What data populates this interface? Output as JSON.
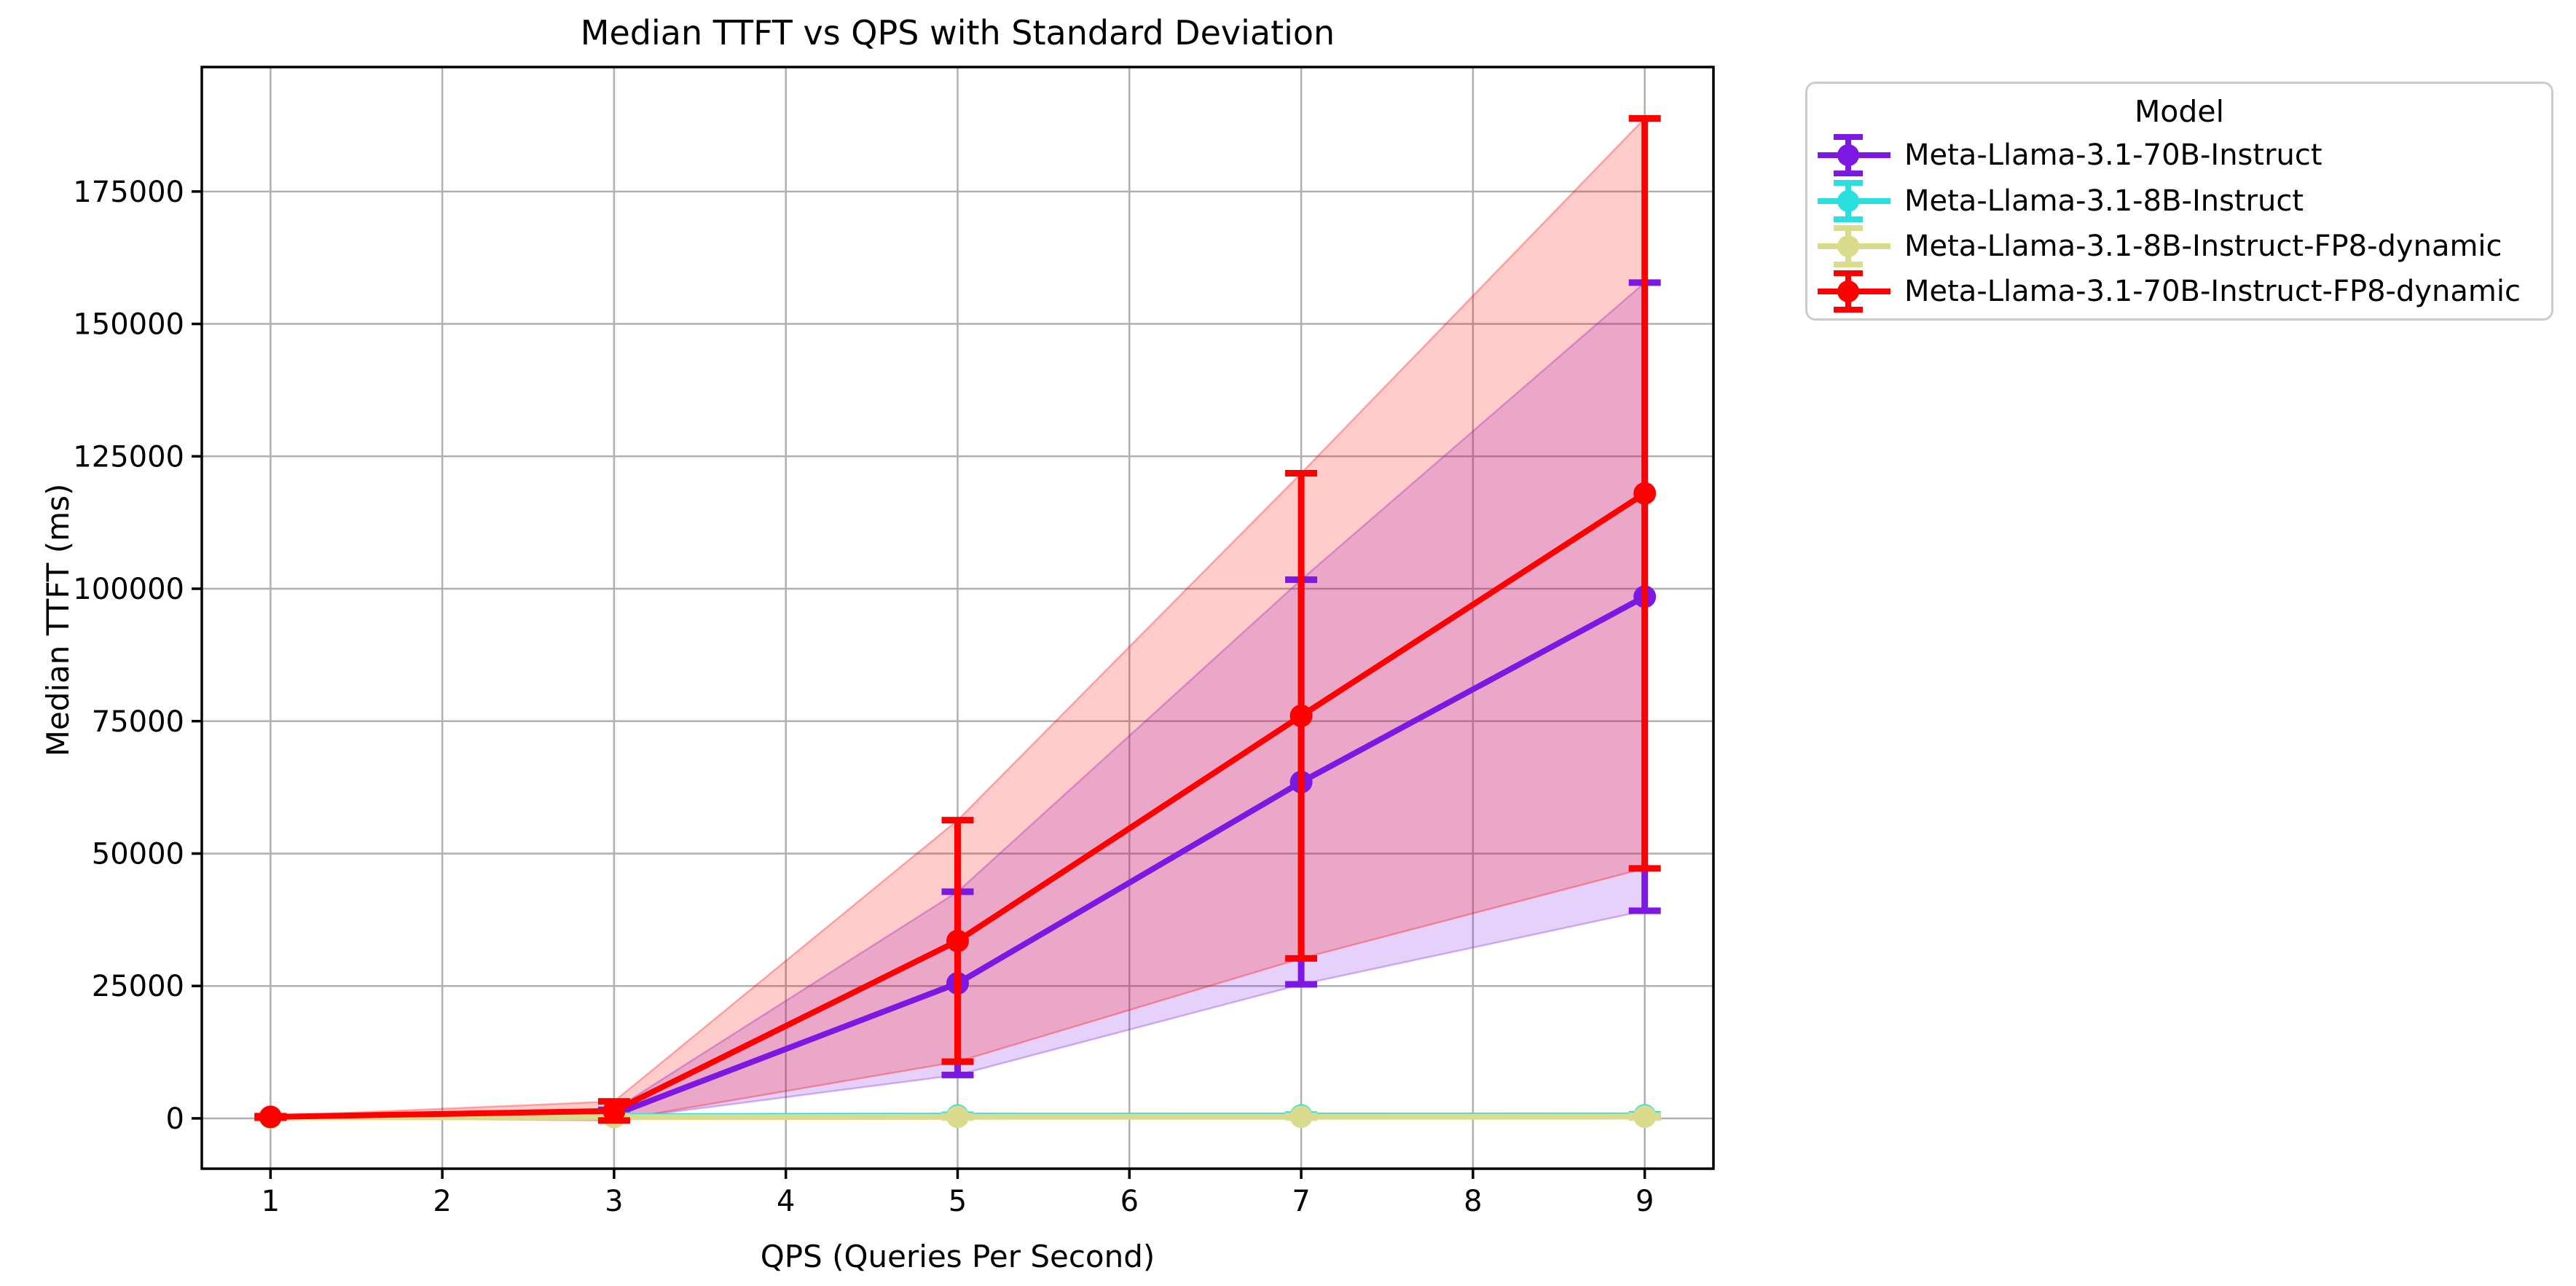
{
  "title": "Median TTFT vs QPS with Standard Deviation",
  "axes": {
    "xlabel": "QPS (Queries Per Second)",
    "ylabel": "Median TTFT (ms)",
    "xticks": [
      1,
      2,
      3,
      4,
      5,
      6,
      7,
      8,
      9
    ],
    "yticks": [
      0,
      25000,
      50000,
      75000,
      100000,
      125000,
      150000,
      175000
    ],
    "xlim": [
      0.6,
      9.4
    ],
    "ylim": [
      -9500,
      198500
    ],
    "grid": true
  },
  "legend": {
    "title": "Model",
    "position": "outside-upper-right"
  },
  "colors": {
    "grid": "#b0b0b0",
    "spine": "#000000",
    "legend_border": "#cccccc",
    "background": "#ffffff"
  },
  "chart_data": {
    "type": "line",
    "x": [
      1,
      3,
      5,
      7,
      9
    ],
    "band_alpha": 0.2,
    "series": [
      {
        "name": "Meta-Llama-3.1-70B-Instruct",
        "color": "#7d18e2",
        "median": [
          250,
          700,
          25500,
          63500,
          98500
        ],
        "std": [
          120,
          900,
          17300,
          38200,
          59300
        ]
      },
      {
        "name": "Meta-Llama-3.1-8B-Instruct",
        "color": "#2bdfdf",
        "median": [
          260,
          420,
          520,
          540,
          560
        ],
        "std": [
          60,
          120,
          160,
          170,
          200
        ]
      },
      {
        "name": "Meta-Llama-3.1-8B-Instruct-FP8-dynamic",
        "color": "#dbdb8d",
        "median": [
          170,
          240,
          290,
          310,
          330
        ],
        "std": [
          50,
          100,
          130,
          140,
          160
        ]
      },
      {
        "name": "Meta-Llama-3.1-70B-Instruct-FP8-dynamic",
        "color": "#ff0000",
        "median": [
          280,
          1400,
          33500,
          76000,
          118000
        ],
        "std": [
          150,
          1800,
          22800,
          45800,
          70800
        ]
      }
    ]
  }
}
